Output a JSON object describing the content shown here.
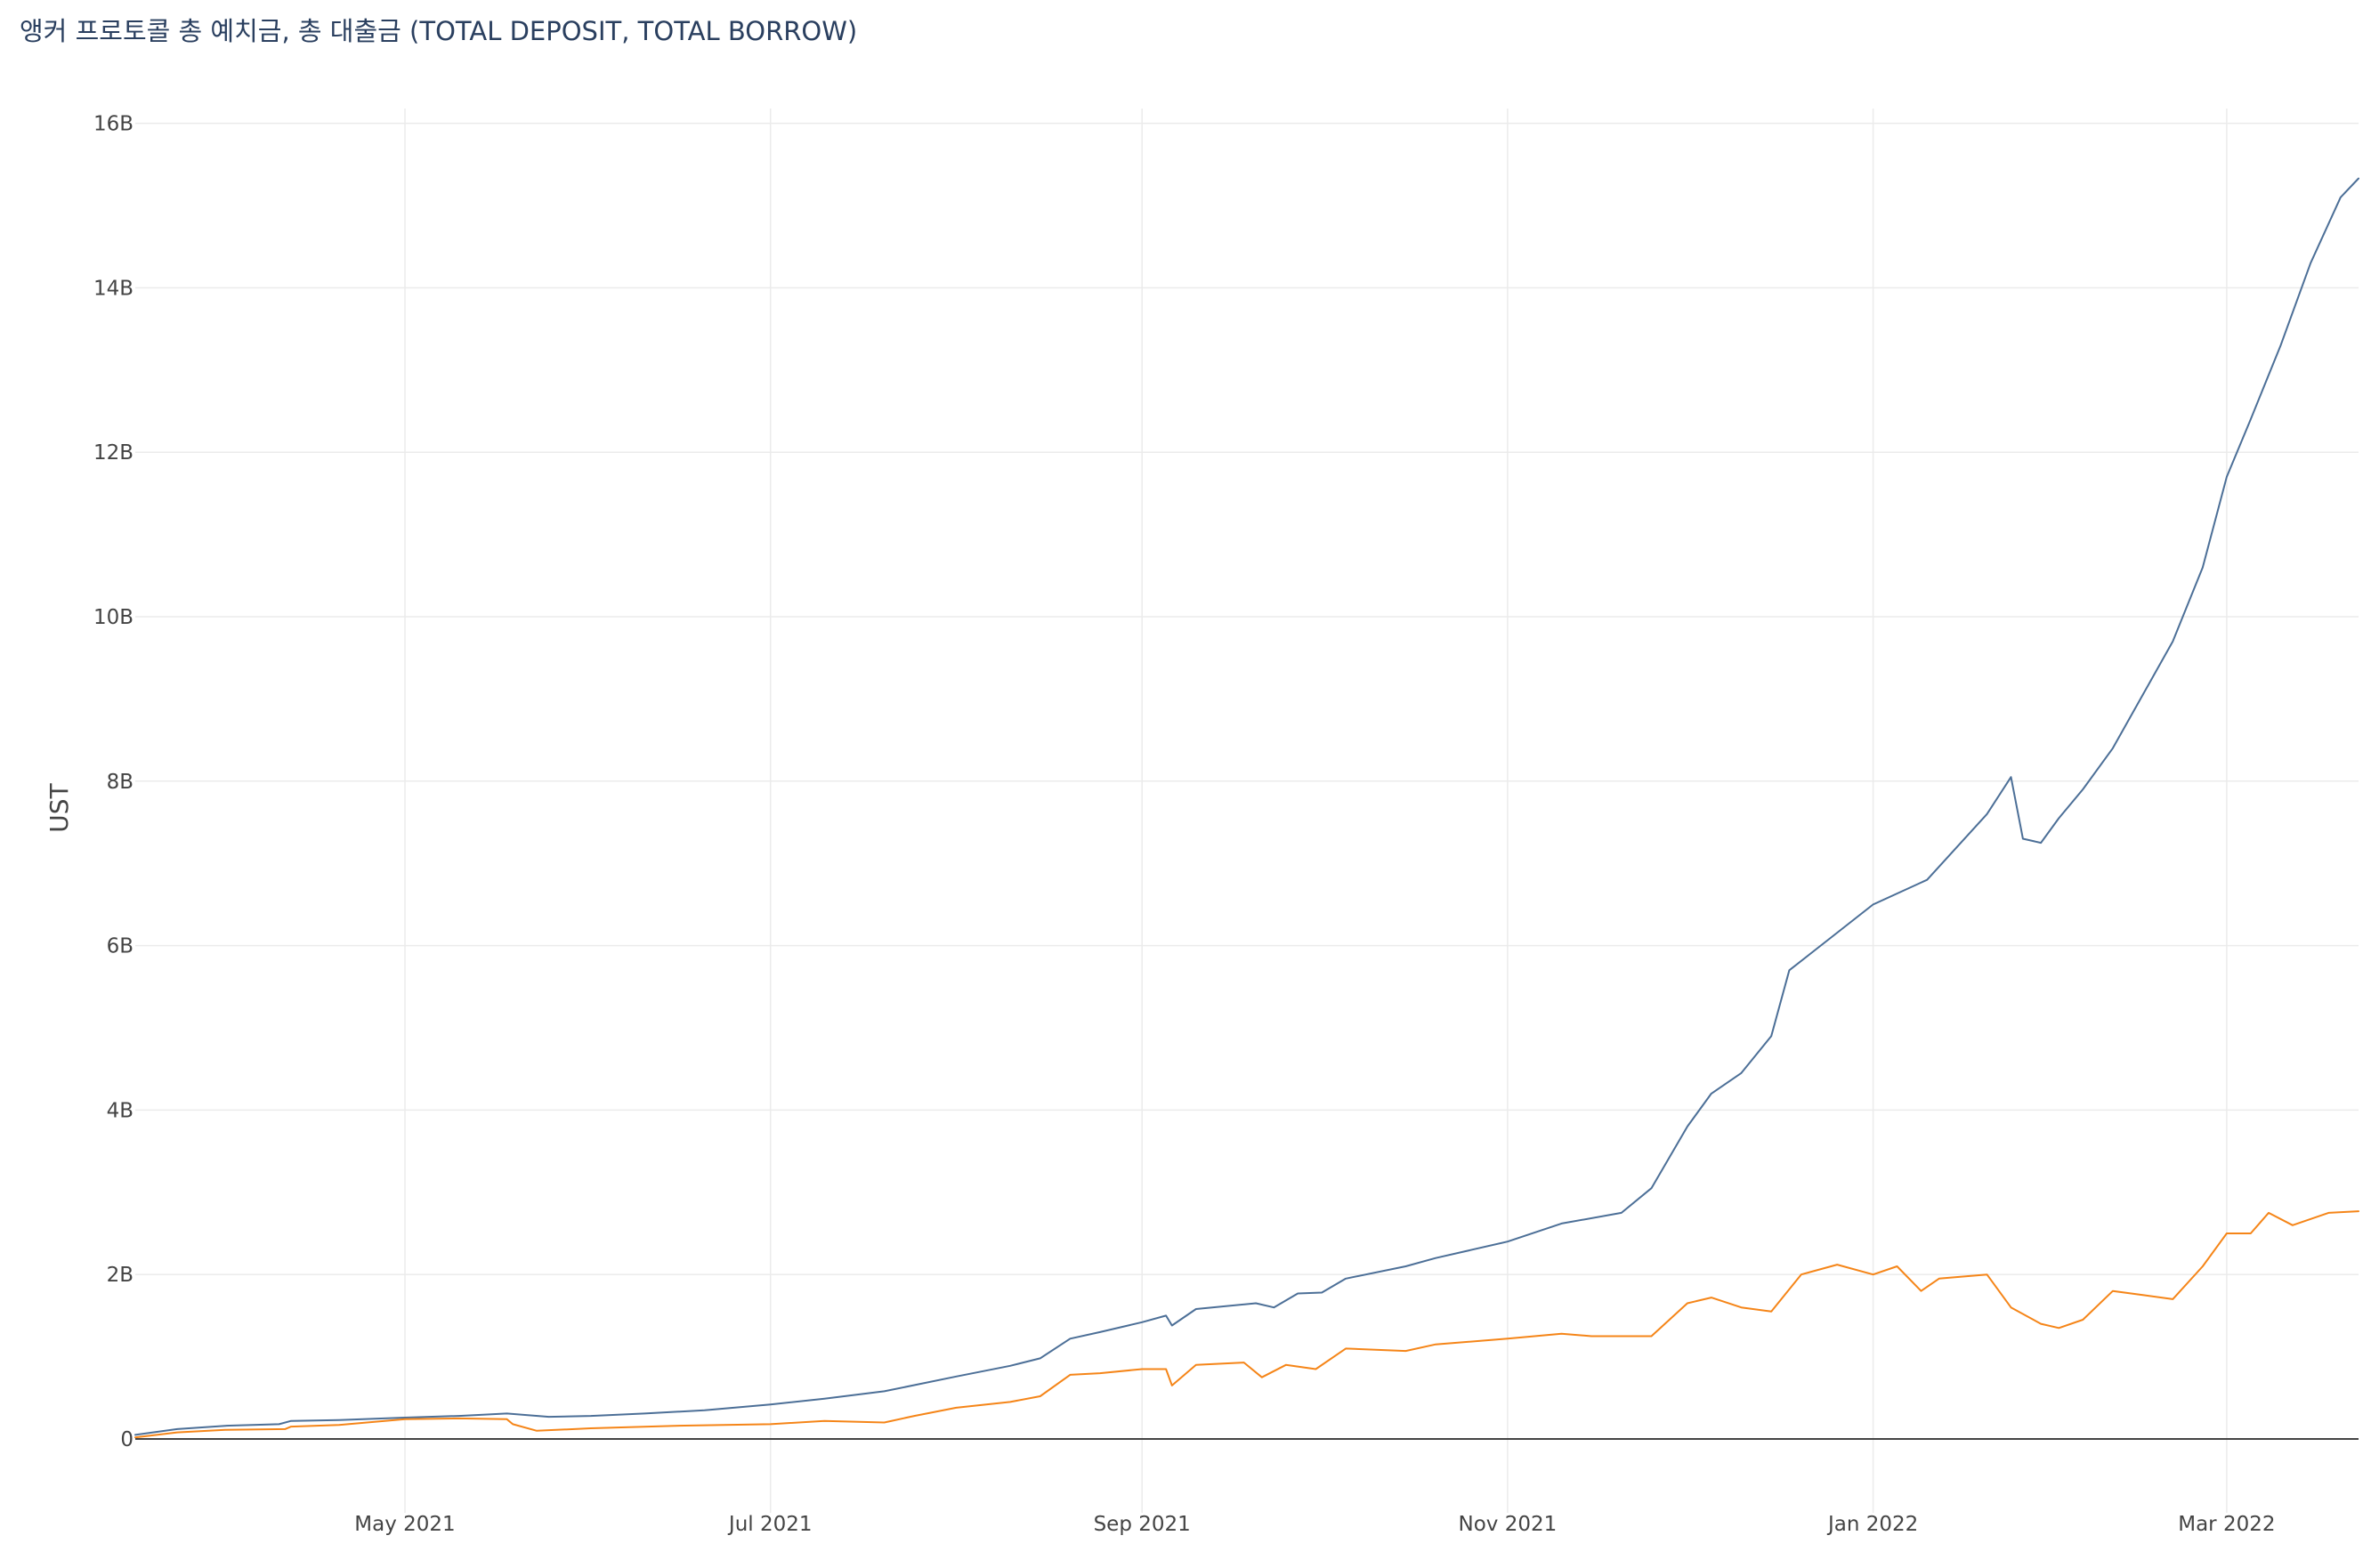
{
  "chart_data": {
    "type": "line",
    "title": "앵커 프로토콜 총 예치금, 총 대출금 (TOTAL DEPOSIT, TOTAL BORROW)",
    "xlabel": "",
    "ylabel": "UST",
    "x_range": [
      "2021-03-17",
      "2022-03-23"
    ],
    "ylim": [
      -1.2,
      16.3
    ],
    "y_unit": "billion UST",
    "y_ticks": [
      0,
      2,
      4,
      6,
      8,
      10,
      12,
      14,
      16
    ],
    "y_tick_labels": [
      "0",
      "2B",
      "4B",
      "6B",
      "8B",
      "10B",
      "12B",
      "14B",
      "16B"
    ],
    "x_ticks": [
      "2021-05-01",
      "2021-07-01",
      "2021-09-01",
      "2021-11-01",
      "2022-01-01",
      "2022-03-01"
    ],
    "x_tick_labels": [
      "May 2021",
      "Jul 2021",
      "Sep 2021",
      "Nov 2021",
      "Jan 2022",
      "Mar 2022"
    ],
    "grid": true,
    "legend": "none",
    "series": [
      {
        "color": "#4c6f97",
        "points": [
          [
            "2021-03-17",
            0.05
          ],
          [
            "2021-03-24",
            0.12
          ],
          [
            "2021-04-01",
            0.16
          ],
          [
            "2021-04-10",
            0.18
          ],
          [
            "2021-04-12",
            0.22
          ],
          [
            "2021-04-20",
            0.23
          ],
          [
            "2021-05-01",
            0.26
          ],
          [
            "2021-05-10",
            0.28
          ],
          [
            "2021-05-18",
            0.31
          ],
          [
            "2021-05-25",
            0.27
          ],
          [
            "2021-06-01",
            0.28
          ],
          [
            "2021-06-10",
            0.31
          ],
          [
            "2021-06-20",
            0.35
          ],
          [
            "2021-07-01",
            0.42
          ],
          [
            "2021-07-10",
            0.49
          ],
          [
            "2021-07-20",
            0.58
          ],
          [
            "2021-08-01",
            0.76
          ],
          [
            "2021-08-10",
            0.89
          ],
          [
            "2021-08-15",
            0.98
          ],
          [
            "2021-08-20",
            1.22
          ],
          [
            "2021-08-25",
            1.3
          ],
          [
            "2021-09-01",
            1.42
          ],
          [
            "2021-09-05",
            1.5
          ],
          [
            "2021-09-06",
            1.38
          ],
          [
            "2021-09-10",
            1.58
          ],
          [
            "2021-09-20",
            1.65
          ],
          [
            "2021-09-23",
            1.6
          ],
          [
            "2021-09-27",
            1.77
          ],
          [
            "2021-10-01",
            1.78
          ],
          [
            "2021-10-05",
            1.95
          ],
          [
            "2021-10-15",
            2.1
          ],
          [
            "2021-10-20",
            2.2
          ],
          [
            "2021-11-01",
            2.4
          ],
          [
            "2021-11-10",
            2.62
          ],
          [
            "2021-11-20",
            2.75
          ],
          [
            "2021-11-25",
            3.05
          ],
          [
            "2021-12-01",
            3.8
          ],
          [
            "2021-12-05",
            4.2
          ],
          [
            "2021-12-10",
            4.45
          ],
          [
            "2021-12-15",
            4.9
          ],
          [
            "2021-12-18",
            5.7
          ],
          [
            "2021-12-25",
            6.1
          ],
          [
            "2022-01-01",
            6.5
          ],
          [
            "2022-01-10",
            6.8
          ],
          [
            "2022-01-20",
            7.6
          ],
          [
            "2022-01-24",
            8.05
          ],
          [
            "2022-01-26",
            7.3
          ],
          [
            "2022-01-29",
            7.25
          ],
          [
            "2022-02-01",
            7.55
          ],
          [
            "2022-02-05",
            7.9
          ],
          [
            "2022-02-10",
            8.4
          ],
          [
            "2022-02-15",
            9.05
          ],
          [
            "2022-02-20",
            9.7
          ],
          [
            "2022-02-25",
            10.6
          ],
          [
            "2022-03-01",
            11.7
          ],
          [
            "2022-03-05",
            12.4
          ],
          [
            "2022-03-10",
            13.3
          ],
          [
            "2022-03-15",
            14.3
          ],
          [
            "2022-03-20",
            15.1
          ],
          [
            "2022-03-23",
            15.33
          ]
        ]
      },
      {
        "color": "#f58518",
        "points": [
          [
            "2021-03-17",
            0.02
          ],
          [
            "2021-03-24",
            0.08
          ],
          [
            "2021-04-01",
            0.11
          ],
          [
            "2021-04-11",
            0.12
          ],
          [
            "2021-04-12",
            0.15
          ],
          [
            "2021-04-20",
            0.17
          ],
          [
            "2021-05-01",
            0.24
          ],
          [
            "2021-05-10",
            0.25
          ],
          [
            "2021-05-18",
            0.24
          ],
          [
            "2021-05-19",
            0.18
          ],
          [
            "2021-05-23",
            0.1
          ],
          [
            "2021-06-01",
            0.13
          ],
          [
            "2021-06-15",
            0.16
          ],
          [
            "2021-07-01",
            0.18
          ],
          [
            "2021-07-10",
            0.22
          ],
          [
            "2021-07-20",
            0.2
          ],
          [
            "2021-07-25",
            0.28
          ],
          [
            "2021-08-01",
            0.38
          ],
          [
            "2021-08-10",
            0.45
          ],
          [
            "2021-08-15",
            0.52
          ],
          [
            "2021-08-20",
            0.78
          ],
          [
            "2021-08-25",
            0.8
          ],
          [
            "2021-09-01",
            0.85
          ],
          [
            "2021-09-05",
            0.85
          ],
          [
            "2021-09-06",
            0.65
          ],
          [
            "2021-09-10",
            0.9
          ],
          [
            "2021-09-18",
            0.93
          ],
          [
            "2021-09-21",
            0.75
          ],
          [
            "2021-09-25",
            0.9
          ],
          [
            "2021-09-30",
            0.85
          ],
          [
            "2021-10-05",
            1.1
          ],
          [
            "2021-10-15",
            1.07
          ],
          [
            "2021-10-20",
            1.15
          ],
          [
            "2021-11-01",
            1.22
          ],
          [
            "2021-11-10",
            1.28
          ],
          [
            "2021-11-15",
            1.25
          ],
          [
            "2021-11-25",
            1.25
          ],
          [
            "2021-12-01",
            1.65
          ],
          [
            "2021-12-05",
            1.72
          ],
          [
            "2021-12-10",
            1.6
          ],
          [
            "2021-12-15",
            1.55
          ],
          [
            "2021-12-20",
            2.0
          ],
          [
            "2021-12-26",
            2.12
          ],
          [
            "2022-01-01",
            2.0
          ],
          [
            "2022-01-05",
            2.1
          ],
          [
            "2022-01-09",
            1.8
          ],
          [
            "2022-01-12",
            1.95
          ],
          [
            "2022-01-20",
            2.0
          ],
          [
            "2022-01-24",
            1.6
          ],
          [
            "2022-01-29",
            1.4
          ],
          [
            "2022-02-01",
            1.35
          ],
          [
            "2022-02-05",
            1.45
          ],
          [
            "2022-02-10",
            1.8
          ],
          [
            "2022-02-15",
            1.75
          ],
          [
            "2022-02-20",
            1.7
          ],
          [
            "2022-02-25",
            2.1
          ],
          [
            "2022-03-01",
            2.5
          ],
          [
            "2022-03-05",
            2.5
          ],
          [
            "2022-03-08",
            2.75
          ],
          [
            "2022-03-12",
            2.6
          ],
          [
            "2022-03-18",
            2.75
          ],
          [
            "2022-03-23",
            2.77
          ]
        ]
      }
    ]
  }
}
